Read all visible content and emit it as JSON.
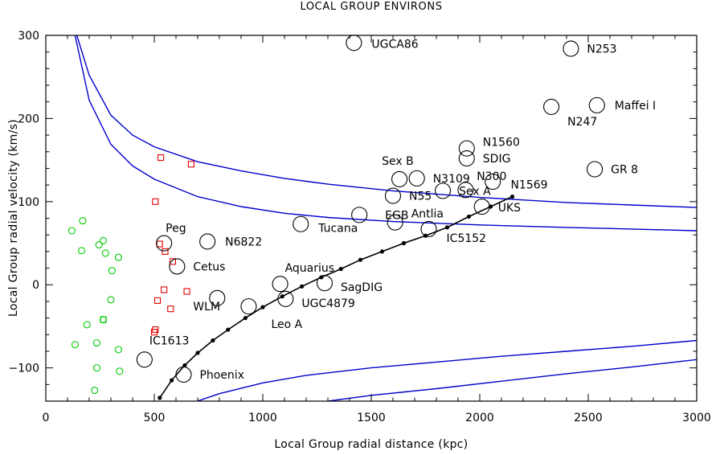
{
  "chart_data": {
    "type": "scatter",
    "title": "LOCAL GROUP ENVIRONS",
    "xlabel": "Local Group radial distance (kpc)",
    "ylabel": "Local Group radial velocity (km/s)",
    "xlim": [
      0,
      3000
    ],
    "ylim": [
      -140,
      300
    ],
    "xticks": [
      0,
      500,
      1000,
      1500,
      2000,
      2500,
      3000
    ],
    "yticks": [
      -100,
      0,
      100,
      200,
      300
    ],
    "ytick_labels": [
      "−100",
      "0",
      "100",
      "200",
      "300"
    ],
    "grid": false,
    "colors": {
      "galaxy": "#000000",
      "green": "#00cc00",
      "red": "#e00000",
      "curve": "#0000cc",
      "track": "#000000"
    },
    "galaxies": [
      {
        "name": "UGCA86",
        "x": 1420,
        "y": 291
      },
      {
        "name": "N253",
        "x": 2420,
        "y": 284
      },
      {
        "name": "Maffei I",
        "x": 2540,
        "y": 216
      },
      {
        "name": "N247",
        "x": 2330,
        "y": 214
      },
      {
        "name": "N1560",
        "x": 1940,
        "y": 164
      },
      {
        "name": "SDIG",
        "x": 1940,
        "y": 152
      },
      {
        "name": "GR 8",
        "x": 2530,
        "y": 139
      },
      {
        "name": "Sex B",
        "x": 1630,
        "y": 127
      },
      {
        "name": "N3109",
        "x": 1710,
        "y": 128
      },
      {
        "name": "N300",
        "x": 2060,
        "y": 124
      },
      {
        "name": "Sex A",
        "x": 1830,
        "y": 113
      },
      {
        "name": "N1569",
        "x": 1935,
        "y": 114
      },
      {
        "name": "N55",
        "x": 1600,
        "y": 107
      },
      {
        "name": "UKS",
        "x": 2010,
        "y": 94
      },
      {
        "name": "EGB",
        "x": 1445,
        "y": 84
      },
      {
        "name": "Antlia",
        "x": 1610,
        "y": 75
      },
      {
        "name": "Tucana",
        "x": 1175,
        "y": 73
      },
      {
        "name": "IC5152",
        "x": 1765,
        "y": 67
      },
      {
        "name": "Peg",
        "x": 545,
        "y": 50
      },
      {
        "name": "N6822",
        "x": 745,
        "y": 52
      },
      {
        "name": "Cetus",
        "x": 605,
        "y": 22
      },
      {
        "name": "Aquarius",
        "x": 1080,
        "y": 1
      },
      {
        "name": "SagDIG",
        "x": 1285,
        "y": 2
      },
      {
        "name": "UGC4879",
        "x": 1105,
        "y": -17
      },
      {
        "name": "WLM",
        "x": 790,
        "y": -16
      },
      {
        "name": "Leo A",
        "x": 935,
        "y": -26
      },
      {
        "name": "IC1613",
        "x": 455,
        "y": -90
      },
      {
        "name": "Phoenix",
        "x": 635,
        "y": -108
      }
    ],
    "green_circles": [
      {
        "x": 120,
        "y": 65
      },
      {
        "x": 170,
        "y": 77
      },
      {
        "x": 165,
        "y": 41
      },
      {
        "x": 245,
        "y": 48
      },
      {
        "x": 265,
        "y": 53
      },
      {
        "x": 275,
        "y": 38
      },
      {
        "x": 335,
        "y": 33
      },
      {
        "x": 305,
        "y": 17
      },
      {
        "x": 300,
        "y": -18
      },
      {
        "x": 190,
        "y": -48
      },
      {
        "x": 265,
        "y": -42
      },
      {
        "x": 135,
        "y": -72
      },
      {
        "x": 235,
        "y": -70
      },
      {
        "x": 335,
        "y": -78
      },
      {
        "x": 235,
        "y": -100
      },
      {
        "x": 340,
        "y": -104
      },
      {
        "x": 225,
        "y": -127
      }
    ],
    "green_squares": [
      {
        "x": 265,
        "y": -42
      }
    ],
    "red_squares": [
      {
        "x": 530,
        "y": 153
      },
      {
        "x": 670,
        "y": 145
      },
      {
        "x": 505,
        "y": 100
      },
      {
        "x": 525,
        "y": 49
      },
      {
        "x": 550,
        "y": 40
      },
      {
        "x": 585,
        "y": 28
      },
      {
        "x": 545,
        "y": -6
      },
      {
        "x": 650,
        "y": -8
      },
      {
        "x": 515,
        "y": -19
      },
      {
        "x": 575,
        "y": -29
      },
      {
        "x": 505,
        "y": -54
      },
      {
        "x": 500,
        "y": -57
      }
    ],
    "curves": [
      {
        "name": "upper-inner",
        "x": [
          143,
          200,
          300,
          400,
          500,
          700,
          900,
          1100,
          1300,
          1600,
          2000,
          2400,
          2700,
          3000
        ],
        "y": [
          300,
          252,
          204,
          180,
          166,
          148,
          137,
          128,
          121,
          113,
          105,
          99,
          96,
          93
        ]
      },
      {
        "name": "upper-outer",
        "x": [
          135,
          200,
          300,
          400,
          500,
          700,
          900,
          1100,
          1300,
          1600,
          2000,
          2400,
          2700,
          3000
        ],
        "y": [
          300,
          222,
          169,
          143,
          127,
          106,
          94,
          86,
          81,
          76,
          72,
          69,
          67,
          65
        ]
      },
      {
        "name": "lower-inner",
        "x": [
          698,
          800,
          1000,
          1200,
          1500,
          1800,
          2100,
          2400,
          2700,
          3000
        ],
        "y": [
          -140,
          -131,
          -118,
          -109,
          -100,
          -93,
          -86,
          -80,
          -74,
          -67
        ]
      },
      {
        "name": "lower-outer",
        "x": [
          1300,
          1500,
          1800,
          2100,
          2400,
          2700,
          3000
        ],
        "y": [
          -140,
          -133,
          -125,
          -116,
          -107,
          -99,
          -90
        ]
      }
    ],
    "track": {
      "x": [
        525,
        580,
        640,
        700,
        770,
        840,
        920,
        1000,
        1090,
        1180,
        1270,
        1360,
        1450,
        1550,
        1650,
        1750,
        1850,
        1950,
        2050,
        2150
      ],
      "y": [
        -136,
        -115,
        -97,
        -82,
        -67,
        -54,
        -40,
        -27,
        -14,
        -2,
        9,
        19,
        30,
        40,
        50,
        59,
        69,
        82,
        94,
        106
      ]
    }
  }
}
